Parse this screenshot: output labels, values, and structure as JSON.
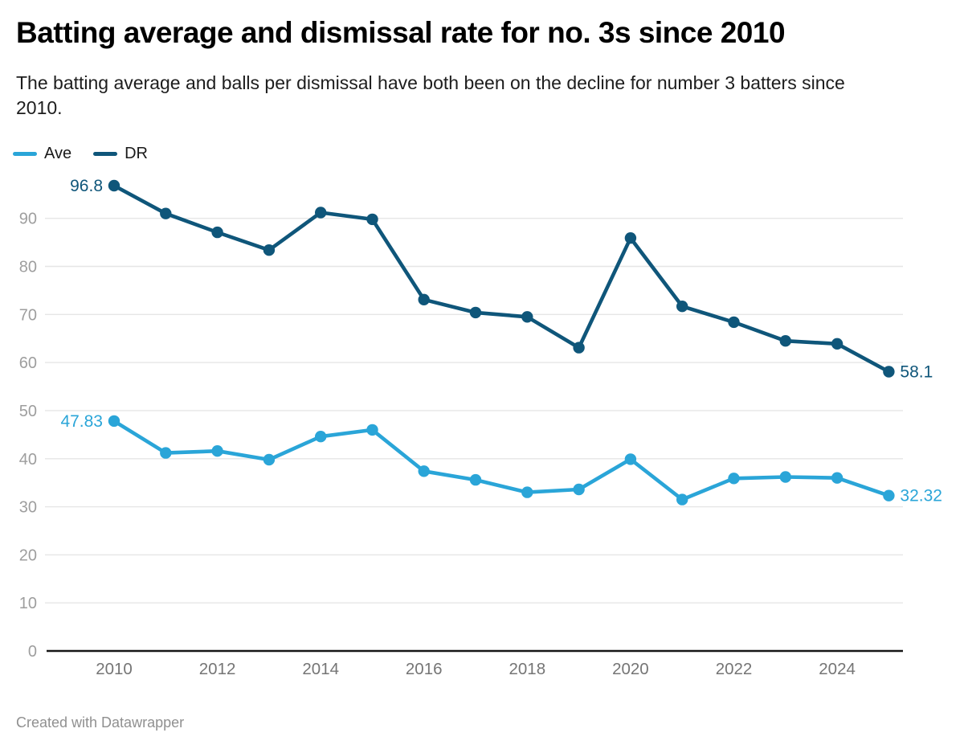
{
  "header": {
    "title": "Batting average and dismissal rate for no. 3s since 2010",
    "subtitle": "The batting average and balls per dismissal have both been on the decline for number 3 batters since 2010."
  },
  "footer": {
    "attribution": "Created with Datawrapper"
  },
  "style": {
    "grid_color": "#e6e6e6",
    "axis_line_color": "#161616",
    "y_tick_text_color": "#9e9e9e",
    "x_tick_text_color": "#757575"
  },
  "chart_data": {
    "type": "line",
    "title": "Batting average and dismissal rate for no. 3s since 2010",
    "x": [
      2010,
      2011,
      2012,
      2013,
      2014,
      2015,
      2016,
      2017,
      2018,
      2019,
      2020,
      2021,
      2022,
      2023,
      2024,
      2025
    ],
    "xticks": [
      2010,
      2012,
      2014,
      2016,
      2018,
      2020,
      2022,
      2024
    ],
    "yticks": [
      0,
      10,
      20,
      30,
      40,
      50,
      60,
      70,
      80,
      90
    ],
    "ylim": [
      0,
      101
    ],
    "grid": true,
    "legend_position": "top-left",
    "series": [
      {
        "name": "Ave",
        "color": "#2aa5d8",
        "values": [
          47.83,
          41.2,
          41.6,
          39.8,
          44.6,
          46.0,
          37.4,
          35.6,
          33.0,
          33.6,
          39.9,
          31.5,
          35.9,
          36.2,
          36.0,
          32.32
        ],
        "first_label": "47.83",
        "last_label": "32.32"
      },
      {
        "name": "DR",
        "color": "#0f567a",
        "values": [
          96.8,
          91.0,
          87.1,
          83.4,
          91.2,
          89.8,
          73.1,
          70.4,
          69.5,
          63.1,
          85.9,
          71.7,
          68.4,
          64.5,
          63.9,
          58.1
        ],
        "first_label": "96.8",
        "last_label": "58.1"
      }
    ]
  }
}
